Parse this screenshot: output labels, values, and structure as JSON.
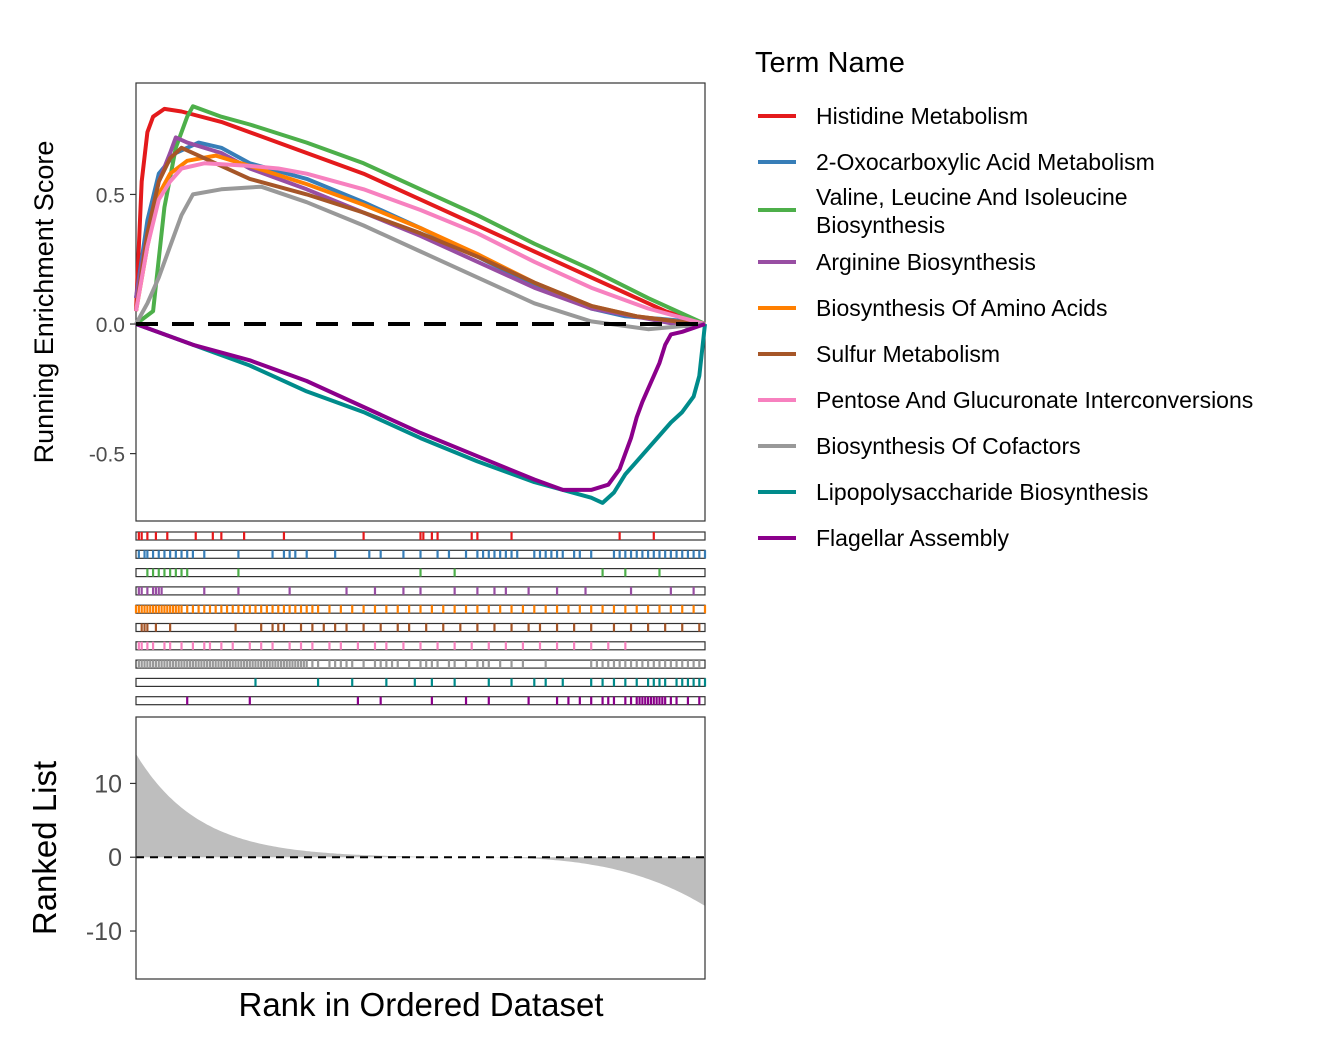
{
  "chart_data": {
    "type": "line",
    "legend": {
      "title": "Term Name",
      "position": "right"
    },
    "series": [
      {
        "name": "Histidine Metabolism",
        "color": "#E41A1C",
        "es_curve": [
          [
            0,
            0.05
          ],
          [
            0.01,
            0.55
          ],
          [
            0.02,
            0.74
          ],
          [
            0.03,
            0.8
          ],
          [
            0.05,
            0.83
          ],
          [
            0.08,
            0.82
          ],
          [
            0.15,
            0.78
          ],
          [
            0.2,
            0.74
          ],
          [
            0.3,
            0.66
          ],
          [
            0.4,
            0.58
          ],
          [
            0.5,
            0.48
          ],
          [
            0.6,
            0.38
          ],
          [
            0.7,
            0.28
          ],
          [
            0.8,
            0.18
          ],
          [
            0.87,
            0.11
          ],
          [
            0.93,
            0.05
          ],
          [
            1.0,
            0.0
          ]
        ],
        "hits": [
          0.005,
          0.01,
          0.02,
          0.035,
          0.055,
          0.105,
          0.135,
          0.15,
          0.19,
          0.26,
          0.4,
          0.5,
          0.505,
          0.52,
          0.53,
          0.59,
          0.6,
          0.66,
          0.85,
          0.91
        ]
      },
      {
        "name": "2-Oxocarboxylic Acid Metabolism",
        "color": "#377EB8",
        "es_curve": [
          [
            0,
            0.1
          ],
          [
            0.02,
            0.4
          ],
          [
            0.04,
            0.58
          ],
          [
            0.07,
            0.66
          ],
          [
            0.11,
            0.7
          ],
          [
            0.15,
            0.68
          ],
          [
            0.2,
            0.62
          ],
          [
            0.3,
            0.56
          ],
          [
            0.4,
            0.47
          ],
          [
            0.5,
            0.37
          ],
          [
            0.6,
            0.26
          ],
          [
            0.7,
            0.15
          ],
          [
            0.8,
            0.06
          ],
          [
            0.86,
            0.03
          ],
          [
            0.92,
            0.02
          ],
          [
            0.97,
            0.01
          ],
          [
            1.0,
            0.0
          ]
        ],
        "hits": [
          0.005,
          0.015,
          0.02,
          0.03,
          0.04,
          0.05,
          0.06,
          0.07,
          0.08,
          0.09,
          0.1,
          0.12,
          0.18,
          0.24,
          0.26,
          0.27,
          0.28,
          0.3,
          0.35,
          0.41,
          0.43,
          0.47,
          0.5,
          0.53,
          0.55,
          0.58,
          0.6,
          0.61,
          0.62,
          0.63,
          0.64,
          0.65,
          0.66,
          0.67,
          0.7,
          0.71,
          0.72,
          0.73,
          0.74,
          0.75,
          0.77,
          0.78,
          0.8,
          0.84,
          0.85,
          0.86,
          0.87,
          0.88,
          0.89,
          0.9,
          0.91,
          0.92,
          0.93,
          0.94,
          0.95,
          0.96,
          0.97,
          0.98,
          0.99,
          1.0
        ]
      },
      {
        "name": "Valine, Leucine And Isoleucine Biosynthesis",
        "color": "#4DAF4A",
        "es_curve": [
          [
            0,
            0.0
          ],
          [
            0.03,
            0.05
          ],
          [
            0.05,
            0.45
          ],
          [
            0.07,
            0.68
          ],
          [
            0.09,
            0.8
          ],
          [
            0.1,
            0.84
          ],
          [
            0.15,
            0.8
          ],
          [
            0.2,
            0.77
          ],
          [
            0.3,
            0.7
          ],
          [
            0.4,
            0.62
          ],
          [
            0.5,
            0.52
          ],
          [
            0.6,
            0.42
          ],
          [
            0.7,
            0.31
          ],
          [
            0.8,
            0.21
          ],
          [
            0.9,
            0.1
          ],
          [
            1.0,
            0.0
          ]
        ],
        "hits": [
          0.02,
          0.03,
          0.04,
          0.05,
          0.06,
          0.07,
          0.08,
          0.09,
          0.18,
          0.5,
          0.56,
          0.82,
          0.86,
          0.92
        ]
      },
      {
        "name": "Arginine Biosynthesis",
        "color": "#984EA3",
        "es_curve": [
          [
            0,
            0.1
          ],
          [
            0.02,
            0.35
          ],
          [
            0.04,
            0.55
          ],
          [
            0.06,
            0.66
          ],
          [
            0.07,
            0.72
          ],
          [
            0.09,
            0.7
          ],
          [
            0.15,
            0.66
          ],
          [
            0.2,
            0.6
          ],
          [
            0.3,
            0.52
          ],
          [
            0.4,
            0.43
          ],
          [
            0.5,
            0.34
          ],
          [
            0.6,
            0.24
          ],
          [
            0.7,
            0.14
          ],
          [
            0.8,
            0.06
          ],
          [
            0.9,
            0.02
          ],
          [
            0.97,
            -0.01
          ],
          [
            1.0,
            0.0
          ]
        ],
        "hits": [
          0.005,
          0.01,
          0.02,
          0.03,
          0.035,
          0.04,
          0.045,
          0.12,
          0.18,
          0.27,
          0.37,
          0.42,
          0.47,
          0.5,
          0.56,
          0.6,
          0.63,
          0.65,
          0.69,
          0.74,
          0.79,
          0.87,
          0.94,
          0.98
        ]
      },
      {
        "name": "Biosynthesis Of Amino Acids",
        "color": "#FF7F00",
        "es_curve": [
          [
            0,
            0.05
          ],
          [
            0.02,
            0.3
          ],
          [
            0.04,
            0.5
          ],
          [
            0.06,
            0.58
          ],
          [
            0.09,
            0.63
          ],
          [
            0.14,
            0.65
          ],
          [
            0.2,
            0.61
          ],
          [
            0.3,
            0.54
          ],
          [
            0.4,
            0.46
          ],
          [
            0.5,
            0.37
          ],
          [
            0.6,
            0.27
          ],
          [
            0.7,
            0.16
          ],
          [
            0.8,
            0.07
          ],
          [
            0.88,
            0.03
          ],
          [
            0.95,
            0.01
          ],
          [
            1.0,
            0.0
          ]
        ],
        "hits": [
          0.0,
          0.005,
          0.01,
          0.015,
          0.02,
          0.025,
          0.03,
          0.035,
          0.04,
          0.045,
          0.05,
          0.055,
          0.06,
          0.065,
          0.07,
          0.075,
          0.08,
          0.09,
          0.1,
          0.11,
          0.12,
          0.13,
          0.14,
          0.15,
          0.16,
          0.17,
          0.18,
          0.19,
          0.2,
          0.21,
          0.22,
          0.23,
          0.24,
          0.25,
          0.26,
          0.27,
          0.28,
          0.29,
          0.3,
          0.31,
          0.32,
          0.34,
          0.36,
          0.38,
          0.4,
          0.42,
          0.44,
          0.46,
          0.48,
          0.5,
          0.52,
          0.54,
          0.56,
          0.58,
          0.6,
          0.62,
          0.64,
          0.66,
          0.68,
          0.7,
          0.72,
          0.74,
          0.76,
          0.78,
          0.8,
          0.82,
          0.84,
          0.86,
          0.88,
          0.9,
          0.92,
          0.94,
          0.96,
          0.98,
          1.0
        ]
      },
      {
        "name": "Sulfur Metabolism",
        "color": "#A65628",
        "es_curve": [
          [
            0,
            0.05
          ],
          [
            0.02,
            0.35
          ],
          [
            0.04,
            0.55
          ],
          [
            0.06,
            0.64
          ],
          [
            0.08,
            0.68
          ],
          [
            0.12,
            0.64
          ],
          [
            0.2,
            0.56
          ],
          [
            0.3,
            0.5
          ],
          [
            0.4,
            0.43
          ],
          [
            0.5,
            0.35
          ],
          [
            0.6,
            0.26
          ],
          [
            0.7,
            0.16
          ],
          [
            0.8,
            0.07
          ],
          [
            0.88,
            0.03
          ],
          [
            0.95,
            0.01
          ],
          [
            1.0,
            0.0
          ]
        ],
        "hits": [
          0.01,
          0.015,
          0.02,
          0.035,
          0.06,
          0.175,
          0.22,
          0.24,
          0.25,
          0.26,
          0.29,
          0.31,
          0.33,
          0.35,
          0.37,
          0.4,
          0.43,
          0.46,
          0.48,
          0.51,
          0.54,
          0.57,
          0.6,
          0.63,
          0.66,
          0.69,
          0.71,
          0.74,
          0.77,
          0.8,
          0.84,
          0.87,
          0.9,
          0.93,
          0.96,
          0.99
        ]
      },
      {
        "name": "Pentose And Glucuronate Interconversions",
        "color": "#F781BF",
        "es_curve": [
          [
            0,
            0.05
          ],
          [
            0.02,
            0.3
          ],
          [
            0.04,
            0.48
          ],
          [
            0.06,
            0.55
          ],
          [
            0.08,
            0.6
          ],
          [
            0.12,
            0.62
          ],
          [
            0.2,
            0.61
          ],
          [
            0.25,
            0.6
          ],
          [
            0.3,
            0.58
          ],
          [
            0.4,
            0.52
          ],
          [
            0.5,
            0.44
          ],
          [
            0.6,
            0.35
          ],
          [
            0.7,
            0.24
          ],
          [
            0.8,
            0.14
          ],
          [
            0.9,
            0.06
          ],
          [
            1.0,
            0.0
          ]
        ],
        "hits": [
          0.005,
          0.01,
          0.02,
          0.03,
          0.05,
          0.06,
          0.08,
          0.1,
          0.12,
          0.13,
          0.15,
          0.17,
          0.2,
          0.22,
          0.24,
          0.27,
          0.29,
          0.31,
          0.34,
          0.36,
          0.39,
          0.42,
          0.44,
          0.47,
          0.5,
          0.53,
          0.56,
          0.59,
          0.62,
          0.65,
          0.68,
          0.71,
          0.74,
          0.77,
          0.8,
          0.83,
          0.86
        ]
      },
      {
        "name": "Biosynthesis Of Cofactors",
        "color": "#999999",
        "es_curve": [
          [
            0,
            0.0
          ],
          [
            0.02,
            0.08
          ],
          [
            0.04,
            0.18
          ],
          [
            0.06,
            0.3
          ],
          [
            0.08,
            0.42
          ],
          [
            0.1,
            0.5
          ],
          [
            0.15,
            0.52
          ],
          [
            0.22,
            0.53
          ],
          [
            0.3,
            0.47
          ],
          [
            0.4,
            0.38
          ],
          [
            0.5,
            0.28
          ],
          [
            0.6,
            0.18
          ],
          [
            0.7,
            0.08
          ],
          [
            0.8,
            0.01
          ],
          [
            0.9,
            -0.02
          ],
          [
            1.0,
            0.0
          ]
        ],
        "hits": [
          0.005,
          0.01,
          0.015,
          0.02,
          0.025,
          0.03,
          0.035,
          0.04,
          0.045,
          0.05,
          0.055,
          0.06,
          0.065,
          0.07,
          0.075,
          0.08,
          0.085,
          0.09,
          0.095,
          0.1,
          0.105,
          0.11,
          0.115,
          0.12,
          0.125,
          0.13,
          0.135,
          0.14,
          0.145,
          0.15,
          0.155,
          0.16,
          0.165,
          0.17,
          0.175,
          0.18,
          0.185,
          0.19,
          0.195,
          0.2,
          0.205,
          0.21,
          0.215,
          0.22,
          0.225,
          0.23,
          0.235,
          0.24,
          0.245,
          0.25,
          0.255,
          0.26,
          0.265,
          0.27,
          0.275,
          0.28,
          0.285,
          0.29,
          0.295,
          0.3,
          0.31,
          0.32,
          0.34,
          0.35,
          0.36,
          0.37,
          0.38,
          0.4,
          0.42,
          0.43,
          0.44,
          0.45,
          0.46,
          0.48,
          0.5,
          0.51,
          0.52,
          0.53,
          0.55,
          0.56,
          0.58,
          0.6,
          0.61,
          0.62,
          0.64,
          0.66,
          0.68,
          0.72,
          0.8,
          0.81,
          0.82,
          0.83,
          0.84,
          0.85,
          0.86,
          0.87,
          0.88,
          0.89,
          0.9,
          0.91,
          0.92,
          0.93,
          0.94,
          0.95,
          0.96,
          0.97,
          0.98,
          0.99
        ]
      },
      {
        "name": "Lipopolysaccharide Biosynthesis",
        "color": "#008B8B",
        "es_curve": [
          [
            0,
            0.0
          ],
          [
            0.1,
            -0.08
          ],
          [
            0.15,
            -0.12
          ],
          [
            0.2,
            -0.16
          ],
          [
            0.3,
            -0.26
          ],
          [
            0.4,
            -0.34
          ],
          [
            0.5,
            -0.44
          ],
          [
            0.6,
            -0.53
          ],
          [
            0.7,
            -0.61
          ],
          [
            0.8,
            -0.67
          ],
          [
            0.82,
            -0.69
          ],
          [
            0.84,
            -0.65
          ],
          [
            0.86,
            -0.58
          ],
          [
            0.88,
            -0.53
          ],
          [
            0.9,
            -0.48
          ],
          [
            0.92,
            -0.43
          ],
          [
            0.94,
            -0.38
          ],
          [
            0.96,
            -0.34
          ],
          [
            0.98,
            -0.28
          ],
          [
            0.99,
            -0.2
          ],
          [
            1.0,
            0.0
          ]
        ],
        "hits": [
          0.21,
          0.32,
          0.38,
          0.44,
          0.49,
          0.52,
          0.56,
          0.62,
          0.66,
          0.7,
          0.72,
          0.75,
          0.8,
          0.82,
          0.84,
          0.86,
          0.88,
          0.9,
          0.91,
          0.92,
          0.93,
          0.95,
          0.96,
          0.97,
          0.98,
          0.99,
          1.0
        ]
      },
      {
        "name": "Flagellar Assembly",
        "color": "#8B008B",
        "es_curve": [
          [
            0,
            0.0
          ],
          [
            0.1,
            -0.08
          ],
          [
            0.2,
            -0.14
          ],
          [
            0.3,
            -0.22
          ],
          [
            0.4,
            -0.32
          ],
          [
            0.5,
            -0.42
          ],
          [
            0.6,
            -0.51
          ],
          [
            0.7,
            -0.6
          ],
          [
            0.75,
            -0.64
          ],
          [
            0.8,
            -0.64
          ],
          [
            0.83,
            -0.62
          ],
          [
            0.85,
            -0.56
          ],
          [
            0.86,
            -0.5
          ],
          [
            0.87,
            -0.44
          ],
          [
            0.88,
            -0.36
          ],
          [
            0.89,
            -0.3
          ],
          [
            0.9,
            -0.25
          ],
          [
            0.91,
            -0.2
          ],
          [
            0.92,
            -0.15
          ],
          [
            0.93,
            -0.08
          ],
          [
            0.94,
            -0.04
          ],
          [
            0.96,
            -0.03
          ],
          [
            1.0,
            0.0
          ]
        ],
        "hits": [
          0.09,
          0.2,
          0.39,
          0.43,
          0.52,
          0.58,
          0.62,
          0.69,
          0.74,
          0.76,
          0.78,
          0.8,
          0.82,
          0.83,
          0.84,
          0.86,
          0.87,
          0.88,
          0.885,
          0.89,
          0.895,
          0.9,
          0.905,
          0.91,
          0.915,
          0.92,
          0.925,
          0.93,
          0.94,
          0.95,
          0.97,
          0.99
        ]
      }
    ],
    "es_panel": {
      "ylabel": "Running Enrichment Score",
      "yticks": [
        0.5,
        0.0,
        -0.5
      ],
      "ytick_labels": [
        "0.5",
        "0.0",
        "-0.5"
      ],
      "ylim": [
        -0.76,
        0.93
      ],
      "hline": 0.0,
      "grid": false
    },
    "ranked_panel": {
      "ylabel": "Ranked List",
      "xlabel": "Rank in Ordered Dataset",
      "yticks": [
        10,
        0,
        -10
      ],
      "ytick_labels": [
        "10",
        "0",
        "-10"
      ],
      "ylim": [
        -16.5,
        19
      ],
      "hline": 0,
      "fill_color": "#BEBEBE",
      "max_value": 13.6,
      "min_value": -6.6
    }
  }
}
